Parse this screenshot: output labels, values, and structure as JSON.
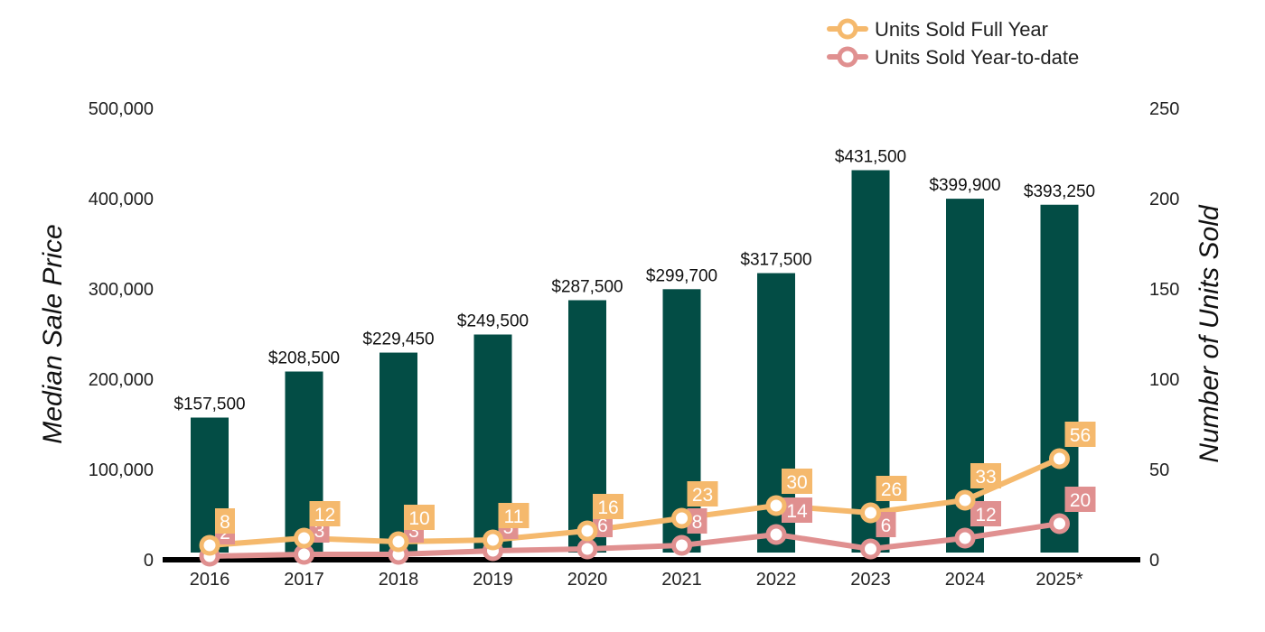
{
  "chart_data": {
    "type": "bar",
    "categories": [
      "2016",
      "2017",
      "2018",
      "2019",
      "2020",
      "2021",
      "2022",
      "2023",
      "2024",
      "2025*"
    ],
    "bars": {
      "values": [
        157500,
        208500,
        229450,
        249500,
        287500,
        299700,
        317500,
        431500,
        399900,
        393250
      ],
      "labels": [
        "$157,500",
        "$208,500",
        "$229,450",
        "$249,500",
        "$287,500",
        "$299,700",
        "$317,500",
        "$431,500",
        "$399,900",
        "$393,250"
      ],
      "color": "#034d45"
    },
    "series": [
      {
        "name": "Units Sold Full Year",
        "type": "line",
        "axis": "right",
        "color": "#f5b96d",
        "values": [
          8,
          12,
          10,
          11,
          16,
          23,
          30,
          26,
          33,
          56
        ],
        "labels": [
          "8",
          "12",
          "10",
          "11",
          "16",
          "23",
          "30",
          "26",
          "33",
          "56"
        ]
      },
      {
        "name": "Units Sold Year-to-date",
        "type": "line",
        "axis": "right",
        "color": "#e09090",
        "values": [
          2,
          3,
          3,
          5,
          6,
          8,
          14,
          6,
          12,
          20
        ],
        "labels": [
          "2",
          "3",
          "3",
          "5",
          "6",
          "8",
          "14",
          "6",
          "12",
          "20"
        ]
      }
    ],
    "yleft": {
      "label": "Median Sale Price",
      "ylim": [
        0,
        500000
      ],
      "ticks": [
        "0",
        "100,000",
        "200,000",
        "300,000",
        "400,000",
        "500,000"
      ]
    },
    "yright": {
      "label": "Number of Units Sold",
      "ylim": [
        0,
        250
      ],
      "ticks": [
        "0",
        "50",
        "100",
        "150",
        "200",
        "250"
      ]
    },
    "legend_position": "top-right",
    "grid": false
  }
}
